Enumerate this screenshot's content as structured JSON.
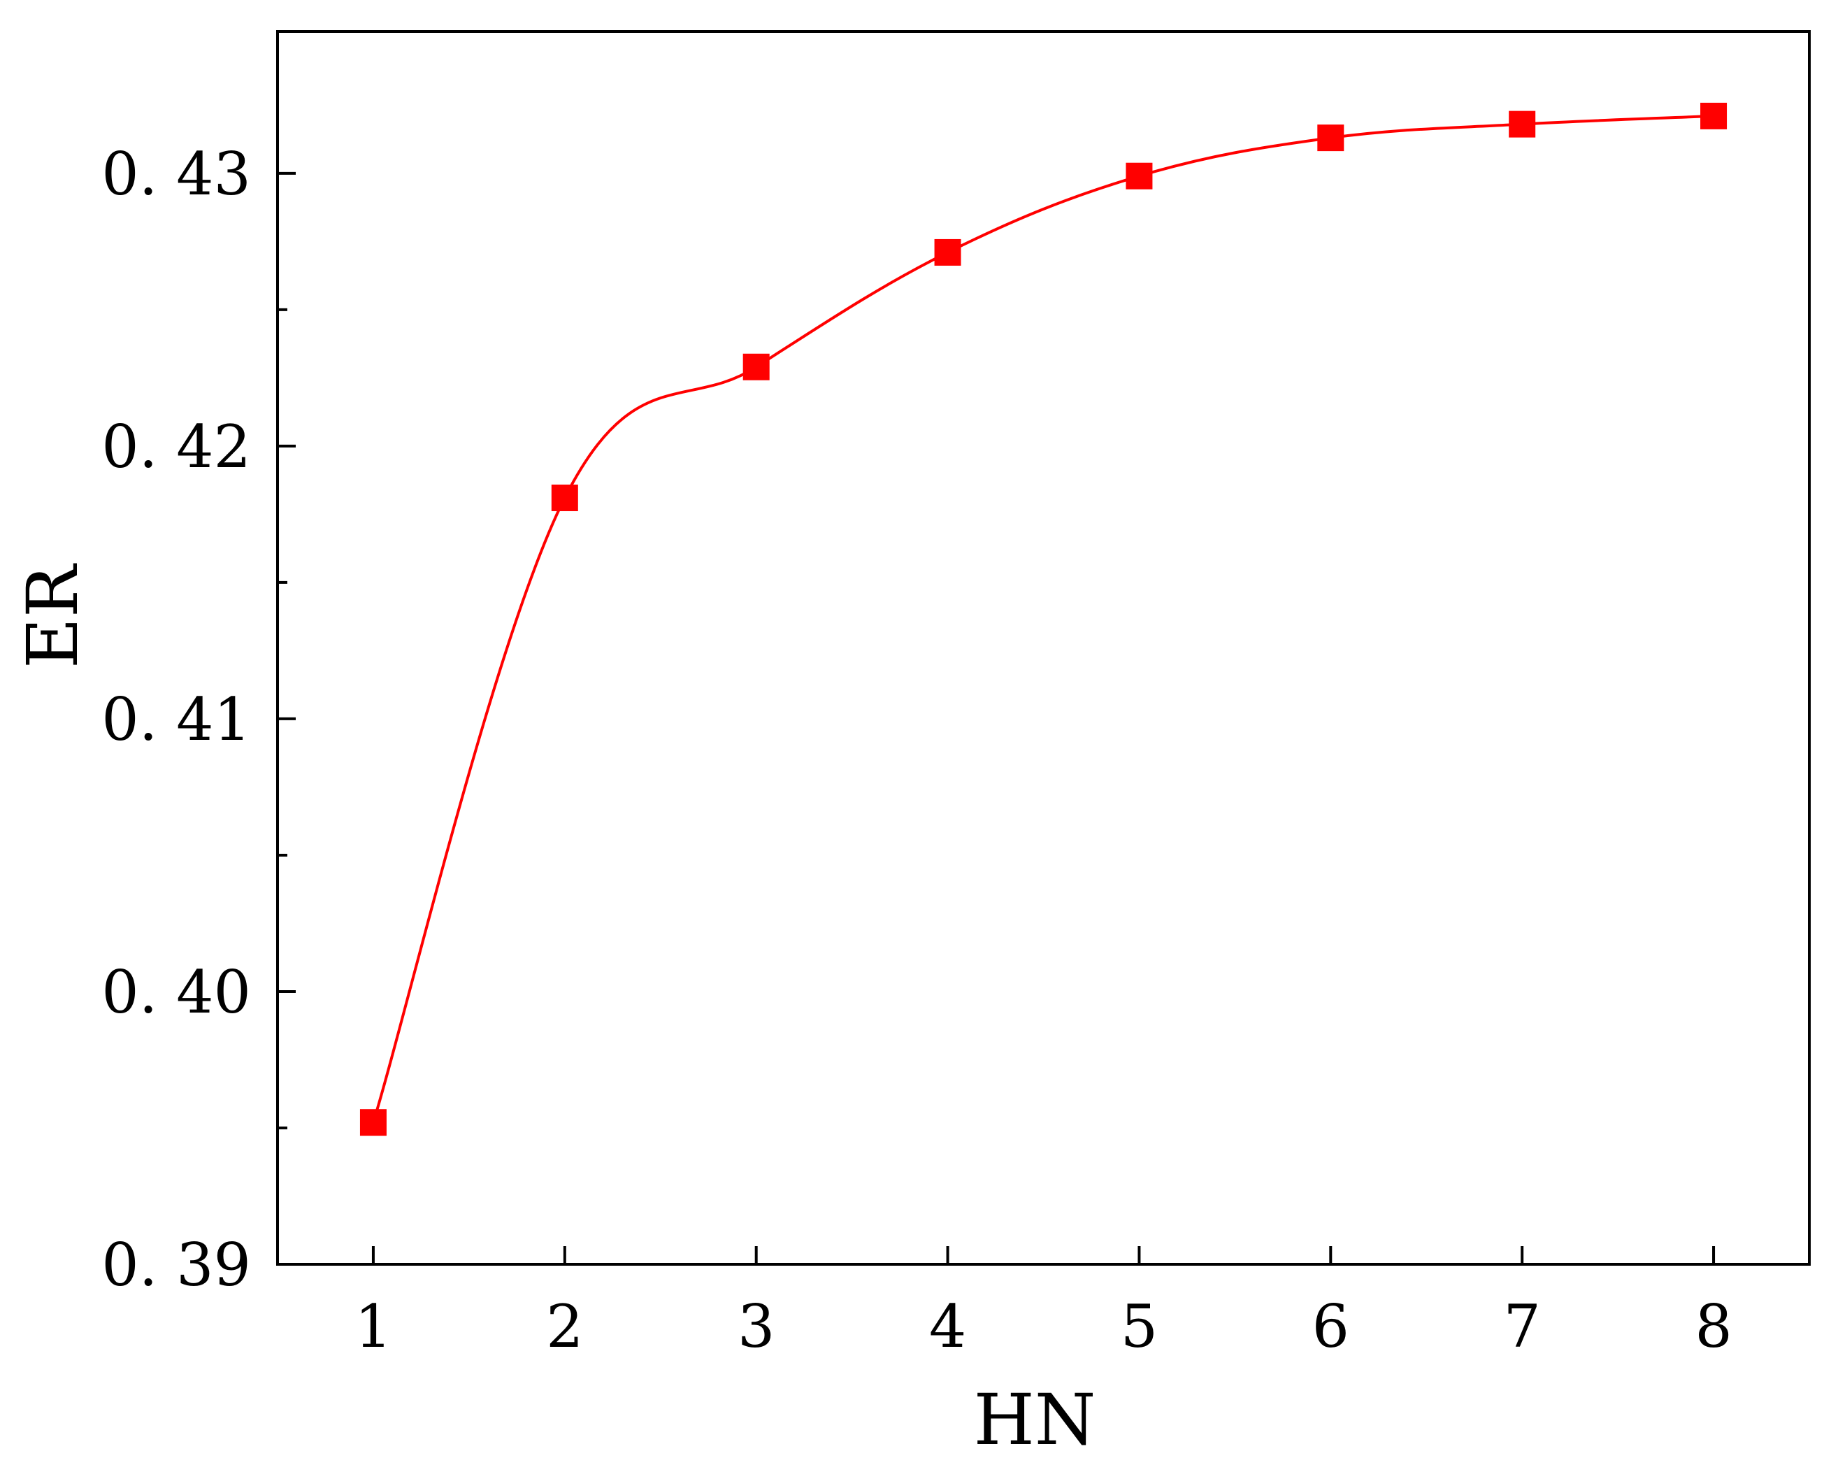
{
  "chart_data": {
    "type": "line",
    "title": "",
    "xlabel": "HN",
    "ylabel": "ER",
    "x": [
      1,
      2,
      3,
      4,
      5,
      6,
      7,
      8
    ],
    "x_tick_labels": [
      "1",
      "2",
      "3",
      "4",
      "5",
      "6",
      "7",
      "8"
    ],
    "xlim": [
      0.5,
      8.5
    ],
    "ylim": [
      0.39,
      0.4352
    ],
    "y_ticks": [
      0.39,
      0.4,
      0.41,
      0.42,
      0.43
    ],
    "y_tick_labels": [
      "0. 39",
      "0. 40",
      "0. 41",
      "0. 42",
      "0. 43"
    ],
    "y_minor_ticks": [
      0.395,
      0.405,
      0.415,
      0.425
    ],
    "grid": false,
    "legend": "none",
    "series": [
      {
        "values": [
          0.3952,
          0.4181,
          0.4229,
          0.4271,
          0.4299,
          0.4313,
          0.4318,
          0.4321
        ],
        "color": "#ff0000",
        "marker": "square"
      }
    ]
  }
}
